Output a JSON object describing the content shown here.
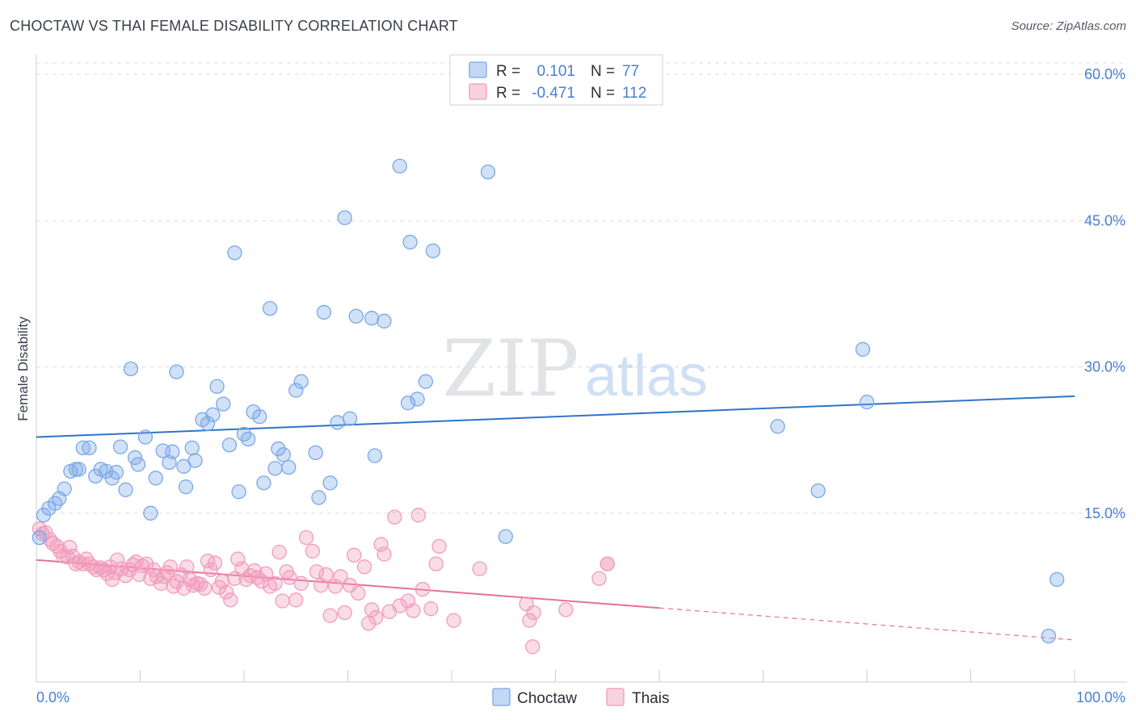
{
  "title": "CHOCTAW VS THAI FEMALE DISABILITY CORRELATION CHART",
  "source": "Source: ZipAtlas.com",
  "watermark": {
    "zip": "ZIP",
    "atlas": "atlas"
  },
  "colors": {
    "choctaw": "#7aa8e8",
    "choctaw_line": "#2f73cc",
    "thai": "#f19cba",
    "thai_line": "#e8709a",
    "tick": "#4a7fd0",
    "grid": "#d8dbe0"
  },
  "legend_box": {
    "rows": [
      {
        "series": "choctaw",
        "r_label": "R =",
        "r_value": "0.101",
        "n_label": "N =",
        "n_value": "77"
      },
      {
        "series": "thai",
        "r_label": "R =",
        "r_value": "-0.471",
        "n_label": "N =",
        "n_value": "112"
      }
    ]
  },
  "chart_data": {
    "type": "scatter",
    "title": "CHOCTAW VS THAI FEMALE DISABILITY CORRELATION CHART",
    "xlabel": "",
    "ylabel": "Female Disability",
    "xlim": [
      0,
      100
    ],
    "ylim": [
      0,
      62
    ],
    "x_tick_labels": [
      "0.0%",
      "100.0%"
    ],
    "y_ticks": [
      15,
      30,
      45,
      60
    ],
    "y_tick_labels": [
      "15.0%",
      "30.0%",
      "45.0%",
      "60.0%"
    ],
    "grid": true,
    "legend_position": "bottom-center",
    "series": [
      {
        "name": "Choctaw",
        "trend": {
          "x": [
            0,
            100
          ],
          "y": [
            22.8,
            27.0
          ],
          "dashed_from": null
        },
        "points": [
          [
            0.3,
            12.5
          ],
          [
            0.7,
            14.8
          ],
          [
            1.2,
            15.5
          ],
          [
            1.8,
            16.0
          ],
          [
            2.2,
            16.5
          ],
          [
            2.7,
            17.5
          ],
          [
            3.3,
            19.3
          ],
          [
            3.8,
            19.5
          ],
          [
            4.1,
            19.5
          ],
          [
            4.5,
            21.7
          ],
          [
            5.1,
            21.7
          ],
          [
            5.7,
            18.8
          ],
          [
            6.2,
            19.5
          ],
          [
            6.7,
            19.3
          ],
          [
            7.3,
            18.6
          ],
          [
            7.7,
            19.2
          ],
          [
            8.1,
            21.8
          ],
          [
            8.6,
            17.4
          ],
          [
            9.1,
            29.8
          ],
          [
            9.5,
            20.7
          ],
          [
            9.8,
            20.0
          ],
          [
            10.5,
            22.8
          ],
          [
            11.0,
            15.0
          ],
          [
            11.5,
            18.6
          ],
          [
            12.2,
            21.4
          ],
          [
            12.8,
            20.2
          ],
          [
            13.1,
            21.3
          ],
          [
            13.5,
            29.5
          ],
          [
            14.2,
            19.8
          ],
          [
            14.4,
            17.7
          ],
          [
            15.0,
            21.7
          ],
          [
            15.3,
            20.4
          ],
          [
            16.0,
            24.6
          ],
          [
            16.5,
            24.2
          ],
          [
            17.0,
            25.1
          ],
          [
            17.4,
            28.0
          ],
          [
            18.0,
            26.2
          ],
          [
            18.6,
            22.0
          ],
          [
            19.1,
            41.7
          ],
          [
            19.5,
            17.2
          ],
          [
            20.0,
            23.1
          ],
          [
            20.4,
            22.6
          ],
          [
            20.9,
            25.4
          ],
          [
            21.5,
            24.9
          ],
          [
            21.9,
            18.1
          ],
          [
            22.5,
            36.0
          ],
          [
            23.0,
            19.6
          ],
          [
            23.3,
            21.6
          ],
          [
            23.8,
            21.0
          ],
          [
            24.3,
            19.7
          ],
          [
            25.0,
            27.6
          ],
          [
            25.5,
            28.5
          ],
          [
            26.9,
            21.2
          ],
          [
            27.2,
            16.6
          ],
          [
            27.7,
            35.6
          ],
          [
            28.3,
            18.1
          ],
          [
            29.0,
            24.3
          ],
          [
            29.7,
            45.3
          ],
          [
            30.2,
            24.7
          ],
          [
            30.8,
            35.2
          ],
          [
            32.3,
            35.0
          ],
          [
            32.6,
            20.9
          ],
          [
            33.5,
            34.7
          ],
          [
            35.0,
            50.6
          ],
          [
            35.8,
            26.3
          ],
          [
            36.0,
            42.8
          ],
          [
            36.7,
            26.7
          ],
          [
            37.5,
            28.5
          ],
          [
            38.2,
            41.9
          ],
          [
            43.5,
            50.0
          ],
          [
            45.2,
            12.6
          ],
          [
            71.4,
            23.9
          ],
          [
            75.3,
            17.3
          ],
          [
            79.6,
            31.8
          ],
          [
            80.0,
            26.4
          ],
          [
            97.5,
            2.4
          ],
          [
            98.3,
            8.2
          ]
        ]
      },
      {
        "name": "Thais",
        "trend": {
          "x": [
            0,
            100
          ],
          "y": [
            10.2,
            2.0
          ],
          "dashed_from": 60
        },
        "points": [
          [
            0.3,
            13.4
          ],
          [
            0.6,
            12.9
          ],
          [
            0.9,
            13.0
          ],
          [
            1.3,
            12.3
          ],
          [
            1.6,
            11.9
          ],
          [
            2.0,
            11.6
          ],
          [
            2.3,
            11.1
          ],
          [
            2.6,
            10.6
          ],
          [
            3.0,
            10.5
          ],
          [
            3.2,
            11.5
          ],
          [
            3.5,
            10.6
          ],
          [
            3.8,
            9.8
          ],
          [
            4.1,
            10.0
          ],
          [
            4.5,
            9.8
          ],
          [
            4.8,
            10.3
          ],
          [
            5.1,
            9.8
          ],
          [
            5.5,
            9.5
          ],
          [
            5.8,
            9.2
          ],
          [
            6.2,
            9.4
          ],
          [
            6.5,
            9.2
          ],
          [
            6.8,
            8.8
          ],
          [
            7.1,
            9.5
          ],
          [
            7.3,
            8.2
          ],
          [
            7.6,
            8.9
          ],
          [
            7.8,
            10.2
          ],
          [
            8.2,
            9.3
          ],
          [
            8.6,
            8.6
          ],
          [
            9.0,
            9.2
          ],
          [
            9.3,
            9.7
          ],
          [
            9.6,
            10.0
          ],
          [
            9.9,
            8.7
          ],
          [
            10.2,
            9.6
          ],
          [
            10.6,
            9.8
          ],
          [
            11.0,
            8.3
          ],
          [
            11.3,
            9.2
          ],
          [
            11.6,
            8.5
          ],
          [
            12.0,
            7.8
          ],
          [
            12.3,
            8.5
          ],
          [
            12.6,
            8.9
          ],
          [
            12.9,
            9.5
          ],
          [
            13.2,
            7.5
          ],
          [
            13.5,
            8.0
          ],
          [
            13.9,
            8.7
          ],
          [
            14.2,
            7.3
          ],
          [
            14.5,
            9.5
          ],
          [
            14.8,
            8.2
          ],
          [
            15.1,
            7.6
          ],
          [
            15.5,
            7.8
          ],
          [
            15.8,
            7.7
          ],
          [
            16.2,
            7.3
          ],
          [
            16.5,
            10.1
          ],
          [
            16.8,
            9.2
          ],
          [
            17.2,
            9.9
          ],
          [
            17.6,
            7.4
          ],
          [
            17.9,
            8.0
          ],
          [
            18.3,
            6.9
          ],
          [
            18.7,
            6.1
          ],
          [
            19.1,
            8.3
          ],
          [
            19.4,
            10.3
          ],
          [
            19.8,
            9.3
          ],
          [
            20.2,
            8.2
          ],
          [
            20.6,
            8.6
          ],
          [
            21.0,
            9.1
          ],
          [
            21.3,
            8.4
          ],
          [
            21.7,
            8.0
          ],
          [
            22.1,
            8.8
          ],
          [
            22.5,
            7.5
          ],
          [
            23.0,
            7.8
          ],
          [
            23.4,
            11.0
          ],
          [
            23.7,
            6.0
          ],
          [
            24.1,
            9.0
          ],
          [
            24.4,
            8.4
          ],
          [
            25.0,
            6.1
          ],
          [
            25.5,
            7.8
          ],
          [
            26.0,
            12.5
          ],
          [
            26.6,
            11.1
          ],
          [
            27.0,
            9.0
          ],
          [
            27.4,
            7.6
          ],
          [
            27.9,
            8.7
          ],
          [
            28.3,
            4.5
          ],
          [
            28.8,
            7.5
          ],
          [
            29.3,
            8.5
          ],
          [
            29.7,
            4.8
          ],
          [
            30.2,
            7.6
          ],
          [
            30.6,
            10.7
          ],
          [
            31.0,
            6.8
          ],
          [
            31.6,
            9.5
          ],
          [
            32.0,
            3.7
          ],
          [
            32.3,
            5.1
          ],
          [
            32.7,
            4.3
          ],
          [
            33.2,
            11.8
          ],
          [
            33.5,
            10.8
          ],
          [
            34.0,
            4.9
          ],
          [
            34.5,
            14.6
          ],
          [
            35.0,
            5.5
          ],
          [
            35.8,
            6.0
          ],
          [
            36.3,
            5.0
          ],
          [
            36.8,
            14.8
          ],
          [
            37.2,
            7.2
          ],
          [
            38.0,
            5.2
          ],
          [
            38.5,
            9.8
          ],
          [
            38.8,
            11.6
          ],
          [
            40.2,
            4.0
          ],
          [
            42.7,
            9.3
          ],
          [
            47.2,
            5.7
          ],
          [
            47.5,
            4.0
          ],
          [
            47.8,
            1.3
          ],
          [
            47.9,
            4.8
          ],
          [
            51.0,
            5.1
          ],
          [
            54.2,
            8.3
          ],
          [
            55.0,
            9.8
          ],
          [
            55.0,
            9.8
          ]
        ]
      }
    ]
  },
  "legend": [
    {
      "series": "choctaw",
      "label": "Choctaw"
    },
    {
      "series": "thai",
      "label": "Thais"
    }
  ]
}
